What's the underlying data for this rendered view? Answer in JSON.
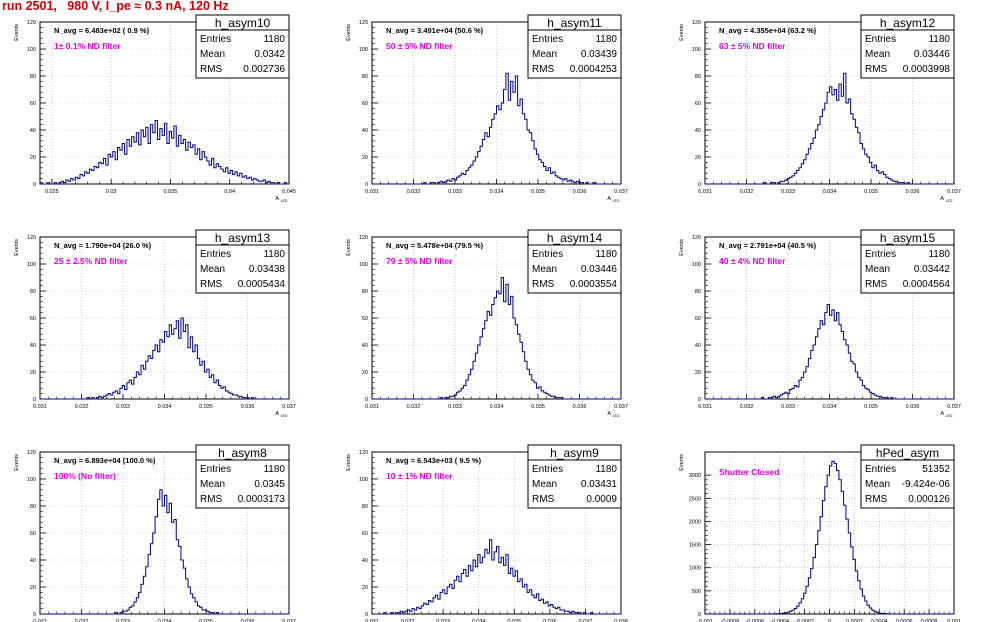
{
  "page": {
    "title": "run 2501,   980 V, I_pe ≈ 0.3 nA, 120 Hz"
  },
  "axis_labels": {
    "x": "A",
    "x_sub": "LED",
    "y": "Events"
  },
  "stats_labels": {
    "entries": "Entries",
    "mean": "Mean",
    "rms": "RMS"
  },
  "colors": {
    "histogram": "#000080",
    "magenta_text": "#e000e0",
    "title_red": "#d00000",
    "axis": "#000000",
    "grid": "#aaaaaa"
  },
  "chart_data": [
    {
      "type": "histogram",
      "name": "h_asym10",
      "nav": "N_avg = 6.483e+02 ( 0.9 %)",
      "filter": "1± 0.1% ND filter",
      "stats": {
        "entries": "1180",
        "mean": "0.0342",
        "rms": "0.002736"
      },
      "xlim": [
        0.024,
        0.045
      ],
      "ylim": [
        0,
        120
      ],
      "grid": true,
      "xticks": [
        "0.025",
        "0.03",
        "0.035",
        "0.04",
        "0.045"
      ],
      "yticks": [
        "0",
        "20",
        "40",
        "60",
        "80",
        "100",
        "120"
      ],
      "bin_values": [
        1,
        0,
        0,
        1,
        0,
        0,
        1,
        0,
        1,
        2,
        1,
        3,
        2,
        4,
        3,
        5,
        4,
        7,
        6,
        9,
        8,
        11,
        10,
        13,
        12,
        16,
        15,
        19,
        14,
        22,
        20,
        24,
        18,
        27,
        25,
        30,
        22,
        33,
        28,
        35,
        31,
        38,
        29,
        40,
        35,
        42,
        30,
        44,
        38,
        47,
        33,
        41,
        36,
        45,
        30,
        39,
        34,
        43,
        28,
        36,
        30,
        33,
        25,
        31,
        27,
        29,
        22,
        26,
        18,
        24,
        20,
        17,
        14,
        19,
        12,
        15,
        13,
        11,
        9,
        12,
        8,
        10,
        7,
        9,
        6,
        8,
        5,
        6,
        4,
        5,
        3,
        4,
        3,
        2,
        2,
        3,
        1,
        2,
        1,
        1,
        0,
        1,
        0,
        0,
        1,
        0
      ]
    },
    {
      "type": "histogram",
      "name": "h_asym11",
      "nav": "N_avg = 3.491e+04 (50.6 %)",
      "filter": "50 ± 5% ND filter",
      "stats": {
        "entries": "1180",
        "mean": "0.03439",
        "rms": "0.0004253"
      },
      "xlim": [
        0.031,
        0.037
      ],
      "ylim": [
        0,
        120
      ],
      "grid": true,
      "xticks": [
        "0.031",
        "0.032",
        "0.033",
        "0.034",
        "0.035",
        "0.036",
        "0.037"
      ],
      "yticks": [
        "0",
        "20",
        "40",
        "60",
        "80",
        "100",
        "120"
      ],
      "bin_values": [
        0,
        0,
        0,
        0,
        0,
        0,
        0,
        0,
        0,
        0,
        0,
        0,
        0,
        0,
        0,
        0,
        0,
        0,
        0,
        0,
        0,
        0,
        1,
        0,
        0,
        1,
        1,
        0,
        1,
        2,
        1,
        2,
        3,
        2,
        4,
        3,
        5,
        6,
        8,
        7,
        10,
        12,
        14,
        17,
        20,
        24,
        28,
        33,
        38,
        35,
        42,
        48,
        52,
        58,
        55,
        60,
        70,
        82,
        62,
        76,
        68,
        80,
        58,
        63,
        52,
        48,
        40,
        38,
        32,
        26,
        22,
        18,
        16,
        13,
        10,
        12,
        8,
        9,
        6,
        5,
        4,
        3,
        4,
        2,
        3,
        2,
        1,
        2,
        1,
        1,
        0,
        1,
        0,
        0,
        1,
        0,
        0,
        0,
        0,
        0,
        0,
        0,
        0,
        0,
        0,
        0
      ]
    },
    {
      "type": "histogram",
      "name": "h_asym12",
      "nav": "N_avg = 4.355e+04 (63.2 %)",
      "filter": "63 ± 5% ND filter",
      "stats": {
        "entries": "1180",
        "mean": "0.03446",
        "rms": "0.0003998"
      },
      "xlim": [
        0.031,
        0.037
      ],
      "ylim": [
        0,
        120
      ],
      "grid": true,
      "xticks": [
        "0.031",
        "0.032",
        "0.033",
        "0.034",
        "0.035",
        "0.036",
        "0.037"
      ],
      "yticks": [
        "0",
        "20",
        "40",
        "60",
        "80",
        "100",
        "120"
      ],
      "bin_values": [
        0,
        0,
        0,
        0,
        0,
        0,
        0,
        0,
        0,
        0,
        0,
        0,
        0,
        0,
        0,
        0,
        0,
        0,
        0,
        0,
        0,
        0,
        0,
        0,
        0,
        1,
        0,
        0,
        1,
        1,
        0,
        1,
        2,
        2,
        3,
        4,
        5,
        6,
        8,
        10,
        12,
        15,
        18,
        22,
        26,
        30,
        34,
        40,
        44,
        50,
        55,
        60,
        68,
        72,
        66,
        70,
        62,
        74,
        65,
        82,
        60,
        63,
        52,
        48,
        42,
        38,
        30,
        26,
        22,
        20,
        16,
        12,
        14,
        10,
        8,
        9,
        7,
        5,
        4,
        3,
        2,
        2,
        1,
        1,
        1,
        0,
        1,
        0,
        0,
        0,
        0,
        0,
        0,
        0,
        0,
        0,
        0,
        0,
        0,
        0,
        0,
        0,
        0,
        0,
        0,
        0
      ]
    },
    {
      "type": "histogram",
      "name": "h_asym13",
      "nav": "N_avg = 1.790e+04 (26.0 %)",
      "filter": "25 ± 2.5% ND filter",
      "stats": {
        "entries": "1180",
        "mean": "0.03438",
        "rms": "0.0005434"
      },
      "xlim": [
        0.031,
        0.037
      ],
      "ylim": [
        0,
        120
      ],
      "grid": true,
      "xticks": [
        "0.031",
        "0.032",
        "0.033",
        "0.034",
        "0.035",
        "0.036",
        "0.037"
      ],
      "yticks": [
        "0",
        "20",
        "40",
        "60",
        "80",
        "100",
        "120"
      ],
      "bin_values": [
        0,
        0,
        0,
        0,
        0,
        0,
        0,
        0,
        0,
        0,
        0,
        0,
        0,
        0,
        0,
        0,
        0,
        0,
        0,
        0,
        1,
        0,
        1,
        0,
        1,
        2,
        1,
        2,
        3,
        4,
        3,
        5,
        6,
        4,
        8,
        10,
        7,
        12,
        14,
        11,
        16,
        20,
        18,
        25,
        22,
        28,
        32,
        30,
        36,
        40,
        35,
        44,
        42,
        50,
        46,
        55,
        48,
        52,
        58,
        45,
        60,
        50,
        55,
        38,
        46,
        35,
        40,
        30,
        25,
        28,
        20,
        22,
        16,
        18,
        12,
        14,
        10,
        8,
        9,
        6,
        5,
        4,
        3,
        3,
        2,
        2,
        1,
        1,
        1,
        0,
        1,
        0,
        0,
        0,
        0,
        0,
        0,
        0,
        0,
        0,
        0,
        0,
        0,
        0,
        0,
        0
      ]
    },
    {
      "type": "histogram",
      "name": "h_asym14",
      "nav": "N_avg = 5.478e+04 (79.5 %)",
      "filter": "79 ± 5% ND filter",
      "stats": {
        "entries": "1180",
        "mean": "0.03446",
        "rms": "0.0003554"
      },
      "xlim": [
        0.031,
        0.037
      ],
      "ylim": [
        0,
        120
      ],
      "grid": true,
      "xticks": [
        "0.031",
        "0.032",
        "0.033",
        "0.034",
        "0.035",
        "0.036",
        "0.037"
      ],
      "yticks": [
        "0",
        "20",
        "40",
        "60",
        "80",
        "100",
        "120"
      ],
      "bin_values": [
        0,
        0,
        0,
        0,
        0,
        0,
        0,
        0,
        0,
        0,
        0,
        0,
        0,
        0,
        0,
        0,
        0,
        0,
        0,
        0,
        0,
        0,
        0,
        0,
        0,
        0,
        0,
        0,
        0,
        1,
        0,
        1,
        1,
        2,
        2,
        3,
        5,
        6,
        8,
        10,
        14,
        18,
        22,
        28,
        34,
        40,
        46,
        52,
        58,
        65,
        62,
        70,
        75,
        80,
        78,
        90,
        72,
        85,
        70,
        76,
        60,
        55,
        48,
        42,
        35,
        28,
        22,
        18,
        14,
        12,
        8,
        9,
        6,
        5,
        4,
        3,
        2,
        2,
        1,
        1,
        1,
        0,
        0,
        0,
        0,
        0,
        0,
        0,
        0,
        0,
        0,
        0,
        0,
        0,
        0,
        0,
        0,
        0,
        0,
        0,
        0,
        0,
        0,
        0,
        0,
        0
      ]
    },
    {
      "type": "histogram",
      "name": "h_asym15",
      "nav": "N_avg = 2.791e+04 (40.5 %)",
      "filter": "40 ± 4% ND filter",
      "stats": {
        "entries": "1180",
        "mean": "0.03442",
        "rms": "0.0004564"
      },
      "xlim": [
        0.031,
        0.037
      ],
      "ylim": [
        0,
        120
      ],
      "grid": true,
      "xticks": [
        "0.031",
        "0.032",
        "0.033",
        "0.034",
        "0.035",
        "0.036",
        "0.037"
      ],
      "yticks": [
        "0",
        "20",
        "40",
        "60",
        "80",
        "100",
        "120"
      ],
      "bin_values": [
        0,
        0,
        0,
        0,
        0,
        0,
        0,
        0,
        0,
        0,
        0,
        0,
        0,
        0,
        0,
        0,
        0,
        0,
        0,
        0,
        0,
        0,
        0,
        0,
        1,
        0,
        0,
        1,
        1,
        2,
        1,
        2,
        3,
        4,
        5,
        4,
        7,
        8,
        10,
        9,
        14,
        16,
        20,
        24,
        30,
        36,
        40,
        46,
        52,
        58,
        55,
        64,
        70,
        62,
        66,
        58,
        64,
        55,
        50,
        44,
        40,
        34,
        28,
        26,
        20,
        16,
        14,
        10,
        8,
        7,
        5,
        4,
        3,
        2,
        2,
        1,
        1,
        1,
        0,
        1,
        0,
        0,
        0,
        0,
        0,
        0,
        0,
        0,
        0,
        0,
        0,
        0,
        0,
        0,
        0,
        0,
        0,
        0,
        0,
        0,
        0,
        0,
        0,
        0,
        0,
        0
      ]
    },
    {
      "type": "histogram",
      "name": "h_asym8",
      "nav": "N_avg = 6.893e+04 (100.0 %)",
      "filter": "100% (No filter)",
      "stats": {
        "entries": "1180",
        "mean": "0.0345",
        "rms": "0.0003173"
      },
      "xlim": [
        0.031,
        0.037
      ],
      "ylim": [
        0,
        120
      ],
      "grid": true,
      "xticks": [
        "0.031",
        "0.032",
        "0.033",
        "0.034",
        "0.035",
        "0.036",
        "0.037"
      ],
      "yticks": [
        "0",
        "20",
        "40",
        "60",
        "80",
        "100",
        "120"
      ],
      "bin_values": [
        0,
        0,
        0,
        0,
        0,
        0,
        0,
        0,
        0,
        0,
        0,
        0,
        0,
        0,
        0,
        0,
        0,
        0,
        0,
        0,
        0,
        0,
        0,
        0,
        0,
        0,
        0,
        0,
        0,
        0,
        0,
        0,
        1,
        0,
        1,
        2,
        2,
        3,
        5,
        6,
        9,
        12,
        16,
        22,
        28,
        35,
        44,
        52,
        60,
        72,
        85,
        92,
        80,
        88,
        75,
        82,
        68,
        70,
        55,
        50,
        40,
        34,
        26,
        20,
        15,
        12,
        9,
        6,
        5,
        3,
        3,
        2,
        1,
        1,
        0,
        1,
        0,
        0,
        0,
        0,
        0,
        0,
        0,
        0,
        0,
        0,
        0,
        0,
        0,
        0,
        0,
        0,
        0,
        0,
        0,
        0,
        0,
        0,
        0,
        0,
        0,
        0,
        0,
        0,
        0,
        0
      ]
    },
    {
      "type": "histogram",
      "name": "h_asym9",
      "nav": "N_avg = 6.543e+03 ( 9.5 %)",
      "filter": "10 ± 1% ND filter",
      "stats": {
        "entries": "1180",
        "mean": "0.03431",
        "rms": "0.0009"
      },
      "xlim": [
        0.031,
        0.038
      ],
      "ylim": [
        0,
        120
      ],
      "grid": true,
      "xticks": [
        "0.031",
        "0.032",
        "0.033",
        "0.034",
        "0.035",
        "0.036",
        "0.037",
        "0.038"
      ],
      "yticks": [
        "0",
        "20",
        "40",
        "60",
        "80",
        "100",
        "120"
      ],
      "bin_values": [
        0,
        0,
        0,
        0,
        0,
        1,
        0,
        0,
        1,
        0,
        1,
        1,
        2,
        1,
        2,
        3,
        2,
        4,
        3,
        5,
        4,
        6,
        8,
        7,
        10,
        9,
        12,
        14,
        11,
        16,
        18,
        15,
        20,
        22,
        19,
        25,
        28,
        24,
        30,
        33,
        28,
        36,
        32,
        40,
        35,
        44,
        38,
        42,
        48,
        45,
        55,
        40,
        46,
        50,
        38,
        42,
        36,
        44,
        30,
        34,
        28,
        32,
        24,
        26,
        20,
        22,
        16,
        18,
        14,
        12,
        15,
        10,
        11,
        8,
        9,
        6,
        7,
        5,
        4,
        5,
        3,
        3,
        2,
        2,
        1,
        2,
        1,
        1,
        1,
        0,
        1,
        0,
        0,
        1,
        0,
        0,
        0,
        0,
        0,
        0,
        0,
        0,
        0,
        0,
        0,
        0
      ]
    },
    {
      "type": "histogram",
      "name": "hPed_asym",
      "nav": "",
      "filter": "Shutter Closed",
      "stats": {
        "entries": "51352",
        "mean": "-9.424e-06",
        "rms": "0.000126"
      },
      "xlim": [
        -0.001,
        0.001
      ],
      "ylim": [
        0,
        3500
      ],
      "grid": true,
      "xticks": [
        "-0.001",
        "-0.0008",
        "-0.0006",
        "-0.0004",
        "-0.0002",
        "0",
        "0.0002",
        "0.0004",
        "0.0006",
        "0.0008",
        "0.001"
      ],
      "yticks": [
        "0",
        "500",
        "1000",
        "1500",
        "2000",
        "2500",
        "3000"
      ],
      "bin_values": [
        0,
        0,
        0,
        0,
        0,
        0,
        0,
        0,
        0,
        0,
        0,
        0,
        0,
        0,
        0,
        0,
        0,
        0,
        0,
        0,
        0,
        0,
        0,
        0,
        0,
        0,
        0,
        1,
        2,
        3,
        5,
        8,
        12,
        18,
        28,
        40,
        60,
        85,
        120,
        170,
        240,
        330,
        450,
        600,
        780,
        980,
        1220,
        1500,
        1800,
        2100,
        2450,
        2750,
        3000,
        3200,
        3300,
        3250,
        3100,
        2900,
        2650,
        2350,
        2050,
        1750,
        1450,
        1180,
        930,
        720,
        540,
        390,
        280,
        190,
        130,
        85,
        55,
        34,
        20,
        12,
        7,
        4,
        2,
        1,
        1,
        0,
        0,
        0,
        0,
        0,
        0,
        0,
        0,
        0,
        0,
        0,
        0,
        0,
        0,
        0,
        0,
        0,
        0,
        0,
        0,
        0,
        0,
        0,
        0,
        0
      ]
    }
  ]
}
